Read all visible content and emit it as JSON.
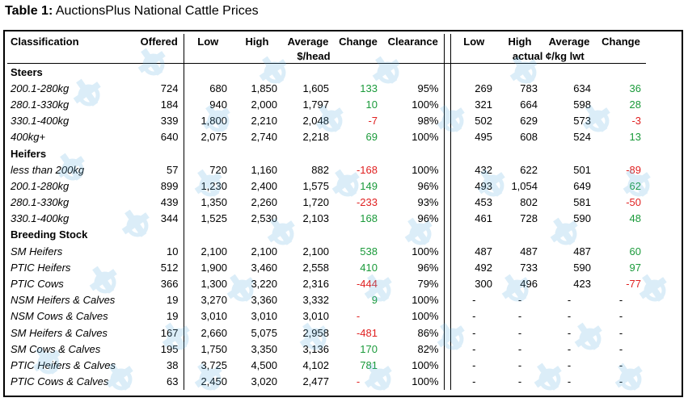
{
  "caption": {
    "prefix": "Table 1:",
    "text": "AuctionsPlus National Cattle Prices"
  },
  "columns": {
    "classification": "Classification",
    "offered": "Offered",
    "low": "Low",
    "high": "High",
    "average": "Average",
    "change": "Change",
    "clearance": "Clearance",
    "low2": "Low",
    "high2": "High",
    "average2": "Average",
    "change2": "Change"
  },
  "units": {
    "head": "$/head",
    "kg": "actual ¢/kg lwt"
  },
  "sections": [
    {
      "title": "Steers",
      "rows": [
        {
          "label": "200.1-280kg",
          "offered": "724",
          "low": "680",
          "high": "1,850",
          "avg": "1,605",
          "change": "133",
          "chg_sign": "pos",
          "clearance": "95%",
          "low2": "269",
          "high2": "783",
          "avg2": "634",
          "change2": "36",
          "chg2_sign": "pos"
        },
        {
          "label": "280.1-330kg",
          "offered": "184",
          "low": "940",
          "high": "2,000",
          "avg": "1,797",
          "change": "10",
          "chg_sign": "pos",
          "clearance": "100%",
          "low2": "321",
          "high2": "664",
          "avg2": "598",
          "change2": "28",
          "chg2_sign": "pos"
        },
        {
          "label": "330.1-400kg",
          "offered": "339",
          "low": "1,800",
          "high": "2,210",
          "avg": "2,048",
          "change": "-7",
          "chg_sign": "neg",
          "clearance": "98%",
          "low2": "502",
          "high2": "629",
          "avg2": "573",
          "change2": "-3",
          "chg2_sign": "neg"
        },
        {
          "label": "400kg+",
          "offered": "640",
          "low": "2,075",
          "high": "2,740",
          "avg": "2,218",
          "change": "69",
          "chg_sign": "pos",
          "clearance": "100%",
          "low2": "495",
          "high2": "608",
          "avg2": "524",
          "change2": "13",
          "chg2_sign": "pos"
        }
      ]
    },
    {
      "title": "Heifers",
      "rows": [
        {
          "label": "less than 200kg",
          "offered": "57",
          "low": "720",
          "high": "1,160",
          "avg": "882",
          "change": "-168",
          "chg_sign": "neg",
          "clearance": "100%",
          "low2": "432",
          "high2": "622",
          "avg2": "501",
          "change2": "-89",
          "chg2_sign": "neg"
        },
        {
          "label": "200.1-280kg",
          "offered": "899",
          "low": "1,230",
          "high": "2,400",
          "avg": "1,575",
          "change": "149",
          "chg_sign": "pos",
          "clearance": "96%",
          "low2": "493",
          "high2": "1,054",
          "avg2": "649",
          "change2": "62",
          "chg2_sign": "pos"
        },
        {
          "label": "280.1-330kg",
          "offered": "439",
          "low": "1,350",
          "high": "2,260",
          "avg": "1,720",
          "change": "-233",
          "chg_sign": "neg",
          "clearance": "93%",
          "low2": "453",
          "high2": "802",
          "avg2": "581",
          "change2": "-50",
          "chg2_sign": "neg"
        },
        {
          "label": "330.1-400kg",
          "offered": "344",
          "low": "1,525",
          "high": "2,530",
          "avg": "2,103",
          "change": "168",
          "chg_sign": "pos",
          "clearance": "96%",
          "low2": "461",
          "high2": "728",
          "avg2": "590",
          "change2": "48",
          "chg2_sign": "pos"
        }
      ]
    },
    {
      "title": "Breeding Stock",
      "rows": [
        {
          "label": "SM Heifers",
          "offered": "10",
          "low": "2,100",
          "high": "2,100",
          "avg": "2,100",
          "change": "538",
          "chg_sign": "pos",
          "clearance": "100%",
          "low2": "487",
          "high2": "487",
          "avg2": "487",
          "change2": "60",
          "chg2_sign": "pos"
        },
        {
          "label": "PTIC Heifers",
          "offered": "512",
          "low": "1,900",
          "high": "3,460",
          "avg": "2,558",
          "change": "410",
          "chg_sign": "pos",
          "clearance": "96%",
          "low2": "492",
          "high2": "733",
          "avg2": "590",
          "change2": "97",
          "chg2_sign": "pos"
        },
        {
          "label": "PTIC Cows",
          "offered": "366",
          "low": "1,300",
          "high": "3,220",
          "avg": "2,316",
          "change": "-444",
          "chg_sign": "neg",
          "clearance": "79%",
          "low2": "300",
          "high2": "496",
          "avg2": "423",
          "change2": "-77",
          "chg2_sign": "neg"
        },
        {
          "label": "NSM Heifers & Calves",
          "offered": "19",
          "low": "3,270",
          "high": "3,360",
          "avg": "3,332",
          "change": "9",
          "chg_sign": "pos",
          "clearance": "100%",
          "low2": "-",
          "high2": "-",
          "avg2": "-",
          "change2": "-",
          "chg2_sign": "none"
        },
        {
          "label": "NSM Cows & Calves",
          "offered": "19",
          "low": "3,010",
          "high": "3,010",
          "avg": "3,010",
          "change": "-",
          "chg_sign": "neg",
          "clearance": "100%",
          "low2": "-",
          "high2": "-",
          "avg2": "-",
          "change2": "-",
          "chg2_sign": "none"
        },
        {
          "label": "SM Heifers & Calves",
          "offered": "167",
          "low": "2,660",
          "high": "5,075",
          "avg": "2,958",
          "change": "-481",
          "chg_sign": "neg",
          "clearance": "86%",
          "low2": "-",
          "high2": "-",
          "avg2": "-",
          "change2": "-",
          "chg2_sign": "none"
        },
        {
          "label": "SM Cows & Calves",
          "offered": "195",
          "low": "1,750",
          "high": "3,350",
          "avg": "3,136",
          "change": "170",
          "chg_sign": "pos",
          "clearance": "82%",
          "low2": "-",
          "high2": "-",
          "avg2": "-",
          "change2": "-",
          "chg2_sign": "none"
        },
        {
          "label": "PTIC Heifers & Calves",
          "offered": "38",
          "low": "3,725",
          "high": "4,500",
          "avg": "4,102",
          "change": "781",
          "chg_sign": "pos",
          "clearance": "100%",
          "low2": "-",
          "high2": "-",
          "avg2": "-",
          "change2": "-",
          "chg2_sign": "none"
        },
        {
          "label": "PTIC Cows & Calves",
          "offered": "63",
          "low": "2,450",
          "high": "3,020",
          "avg": "2,477",
          "change": "-",
          "chg_sign": "neg",
          "clearance": "100%",
          "low2": "-",
          "high2": "-",
          "avg2": "-",
          "change2": "-",
          "chg2_sign": "none"
        }
      ]
    }
  ],
  "colors": {
    "positive": "#1a9a3a",
    "negative": "#e02020",
    "watermark": "#5fb0e0"
  },
  "watermark_icon": "auctionsplus-logo-icon"
}
